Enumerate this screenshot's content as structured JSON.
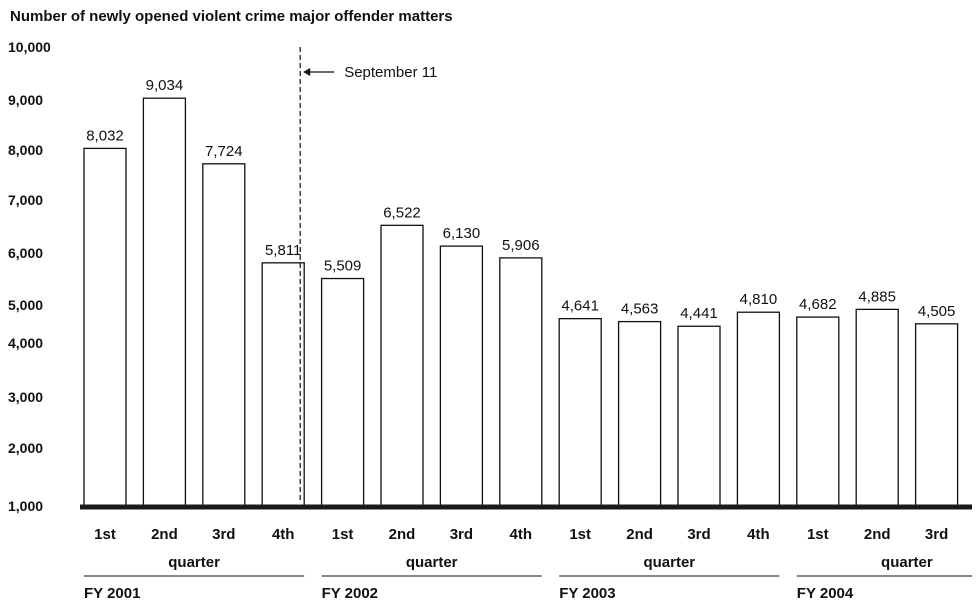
{
  "chart_data": {
    "type": "bar",
    "title": "Number of newly opened violent crime major offender matters",
    "ylim": [
      1000,
      10000
    ],
    "ytick_labels": [
      "1,000",
      "2,000",
      "3,000",
      "4,000",
      "5,000",
      "6,000",
      "7,000",
      "8,000",
      "9,000",
      "10,000"
    ],
    "bars": [
      {
        "quarter": "1st",
        "fy": "FY 2001",
        "value": 8032,
        "label": "8,032"
      },
      {
        "quarter": "2nd",
        "fy": "FY 2001",
        "value": 9034,
        "label": "9,034"
      },
      {
        "quarter": "3rd",
        "fy": "FY 2001",
        "value": 7724,
        "label": "7,724"
      },
      {
        "quarter": "4th",
        "fy": "FY 2001",
        "value": 5811,
        "label": "5,811"
      },
      {
        "quarter": "1st",
        "fy": "FY 2002",
        "value": 5509,
        "label": "5,509"
      },
      {
        "quarter": "2nd",
        "fy": "FY 2002",
        "value": 6522,
        "label": "6,522"
      },
      {
        "quarter": "3rd",
        "fy": "FY 2002",
        "value": 6130,
        "label": "6,130"
      },
      {
        "quarter": "4th",
        "fy": "FY 2002",
        "value": 5906,
        "label": "5,906"
      },
      {
        "quarter": "1st",
        "fy": "FY 2003",
        "value": 4641,
        "label": "4,641"
      },
      {
        "quarter": "2nd",
        "fy": "FY 2003",
        "value": 4563,
        "label": "4,563"
      },
      {
        "quarter": "3rd",
        "fy": "FY 2003",
        "value": 4441,
        "label": "4,441"
      },
      {
        "quarter": "4th",
        "fy": "FY 2003",
        "value": 4810,
        "label": "4,810"
      },
      {
        "quarter": "1st",
        "fy": "FY 2004",
        "value": 4682,
        "label": "4,682"
      },
      {
        "quarter": "2nd",
        "fy": "FY 2004",
        "value": 4885,
        "label": "4,885"
      },
      {
        "quarter": "3rd",
        "fy": "FY 2004",
        "value": 4505,
        "label": "4,505"
      }
    ],
    "group_sublabel": "quarter",
    "fiscal_years": [
      "FY 2001",
      "FY 2002",
      "FY 2003",
      "FY 2004"
    ],
    "annotation": {
      "text": "September 11",
      "after_bar_index": 3
    },
    "bar_fill": "#ffffff",
    "bar_stroke": "#111111",
    "baseline_color": "#1a1a1a"
  }
}
